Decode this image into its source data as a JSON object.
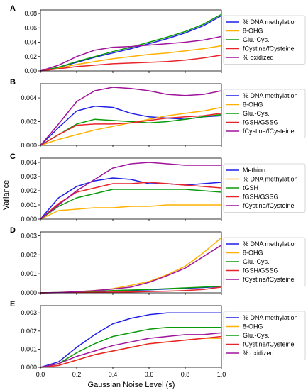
{
  "ylabel": "Variance",
  "xlabel": "Gaussian Noise Level (s)",
  "colors": {
    "blue": "#1f1fe6",
    "orange": "#ffb000",
    "green": "#0a9b0a",
    "red": "#e8242b",
    "purple": "#a0149b"
  },
  "chart_data": [
    {
      "type": "line",
      "panel": "A",
      "x": [
        0,
        0.1,
        0.2,
        0.3,
        0.4,
        0.5,
        0.6,
        0.7,
        0.8,
        0.9,
        1.0
      ],
      "xlim": [
        0,
        1.0
      ],
      "ylim": [
        0,
        0.085
      ],
      "yticks": [
        0,
        0.02,
        0.04,
        0.06,
        0.08
      ],
      "ytick_labels": [
        "0.00",
        "0.02",
        "0.04",
        "0.06",
        "0.08"
      ],
      "legend_position": "right",
      "series": [
        {
          "name": "% DNA methylation",
          "color": "blue",
          "values": [
            0,
            0.005,
            0.012,
            0.019,
            0.025,
            0.031,
            0.038,
            0.045,
            0.053,
            0.063,
            0.077
          ]
        },
        {
          "name": "8-OHG",
          "color": "orange",
          "values": [
            0,
            0.004,
            0.009,
            0.013,
            0.017,
            0.02,
            0.023,
            0.025,
            0.028,
            0.031,
            0.035
          ]
        },
        {
          "name": "Glu.-Cys.",
          "color": "green",
          "values": [
            0,
            0.005,
            0.013,
            0.02,
            0.027,
            0.033,
            0.04,
            0.047,
            0.055,
            0.065,
            0.079
          ]
        },
        {
          "name": "fCystine/fCysteine",
          "color": "red",
          "values": [
            0,
            0.003,
            0.006,
            0.008,
            0.01,
            0.011,
            0.012,
            0.013,
            0.015,
            0.018,
            0.022
          ]
        },
        {
          "name": "% oxidized",
          "color": "purple",
          "values": [
            0,
            0.008,
            0.02,
            0.029,
            0.033,
            0.034,
            0.036,
            0.038,
            0.04,
            0.043,
            0.048
          ]
        }
      ]
    },
    {
      "type": "line",
      "panel": "B",
      "x": [
        0,
        0.1,
        0.2,
        0.3,
        0.4,
        0.5,
        0.6,
        0.7,
        0.8,
        0.9,
        1.0
      ],
      "xlim": [
        0,
        1.0
      ],
      "ylim": [
        0,
        0.0052
      ],
      "yticks": [
        0,
        0.002,
        0.004
      ],
      "ytick_labels": [
        "0.000",
        "0.002",
        "0.004"
      ],
      "legend_position": "right",
      "series": [
        {
          "name": "% DNA methylation",
          "color": "blue",
          "values": [
            0,
            0.0015,
            0.0029,
            0.0033,
            0.0032,
            0.0027,
            0.0024,
            0.0023,
            0.0022,
            0.0024,
            0.0025
          ]
        },
        {
          "name": "8-OHG",
          "color": "orange",
          "values": [
            0,
            0.0005,
            0.0009,
            0.0013,
            0.0016,
            0.0019,
            0.0022,
            0.0025,
            0.0027,
            0.0029,
            0.0032
          ]
        },
        {
          "name": "Glu.-Cys.",
          "color": "green",
          "values": [
            0,
            0.0009,
            0.0018,
            0.0022,
            0.0021,
            0.002,
            0.0019,
            0.002,
            0.0022,
            0.0024,
            0.0026
          ]
        },
        {
          "name": "fGSH/GSSG",
          "color": "red",
          "values": [
            0,
            0.0009,
            0.0017,
            0.0018,
            0.0018,
            0.0019,
            0.0021,
            0.0023,
            0.0024,
            0.0025,
            0.0027
          ]
        },
        {
          "name": "fCystine/fCysteine",
          "color": "purple",
          "values": [
            0,
            0.0018,
            0.0037,
            0.0046,
            0.0049,
            0.0048,
            0.0046,
            0.0043,
            0.0042,
            0.0043,
            0.0046
          ]
        }
      ]
    },
    {
      "type": "line",
      "panel": "C",
      "x": [
        0,
        0.1,
        0.2,
        0.3,
        0.4,
        0.5,
        0.6,
        0.7,
        0.8,
        0.9,
        1.0
      ],
      "xlim": [
        0,
        1.0
      ],
      "ylim": [
        0,
        0.0043
      ],
      "yticks": [
        0,
        0.001,
        0.002,
        0.003,
        0.004
      ],
      "ytick_labels": [
        "0.000",
        "0.001",
        "0.002",
        "0.003",
        "0.004"
      ],
      "legend_position": "right",
      "series": [
        {
          "name": "Methion.",
          "color": "blue",
          "values": [
            0,
            0.0015,
            0.0023,
            0.0027,
            0.0029,
            0.0028,
            0.0025,
            0.0025,
            0.0024,
            0.0025,
            0.0026
          ]
        },
        {
          "name": "% DNA methylation",
          "color": "orange",
          "values": [
            0,
            0.0006,
            0.0007,
            0.0008,
            0.0008,
            0.0009,
            0.0009,
            0.001,
            0.001,
            0.001,
            0.001
          ]
        },
        {
          "name": "tGSH",
          "color": "green",
          "values": [
            0,
            0.0009,
            0.0015,
            0.0018,
            0.0021,
            0.0021,
            0.0021,
            0.0021,
            0.0021,
            0.002,
            0.0019
          ]
        },
        {
          "name": "fGSH/GSSG",
          "color": "red",
          "values": [
            0,
            0.0011,
            0.0019,
            0.0022,
            0.0025,
            0.0025,
            0.0026,
            0.0025,
            0.0024,
            0.0023,
            0.0022
          ]
        },
        {
          "name": "fCystine/fCysteine",
          "color": "purple",
          "values": [
            0,
            0.001,
            0.002,
            0.0028,
            0.0036,
            0.0039,
            0.004,
            0.0039,
            0.0038,
            0.0038,
            0.0038
          ]
        }
      ]
    },
    {
      "type": "line",
      "panel": "D",
      "x": [
        0,
        0.1,
        0.2,
        0.3,
        0.4,
        0.5,
        0.6,
        0.7,
        0.8,
        0.9,
        1.0
      ],
      "xlim": [
        0,
        1.0
      ],
      "ylim": [
        0,
        0.0032
      ],
      "yticks": [
        0,
        0.001,
        0.002,
        0.003
      ],
      "ytick_labels": [
        "0.000",
        "0.001",
        "0.002",
        "0.003"
      ],
      "legend_position": "right",
      "series": [
        {
          "name": "% DNA methylation",
          "color": "blue",
          "values": [
            0,
            1e-05,
            3e-05,
            6e-05,
            0.0001,
            0.00013,
            0.00016,
            0.0002,
            0.00024,
            0.00028,
            0.00033
          ]
        },
        {
          "name": "8-OHG",
          "color": "orange",
          "values": [
            0,
            2e-05,
            6e-05,
            0.00012,
            0.00022,
            0.0004,
            0.0006,
            0.00095,
            0.0014,
            0.0021,
            0.0029
          ]
        },
        {
          "name": "Glu.-Cys.",
          "color": "green",
          "values": [
            0,
            2e-05,
            5e-05,
            8e-05,
            0.00012,
            0.00015,
            0.00018,
            0.00022,
            0.00026,
            0.0003,
            0.00035
          ]
        },
        {
          "name": "fGSH/GSSG",
          "color": "red",
          "values": [
            0,
            1e-05,
            2e-05,
            3e-05,
            4e-05,
            5e-05,
            7e-05,
            9e-05,
            0.00012,
            0.00018,
            0.0003
          ]
        },
        {
          "name": "fCystine/fCysteine",
          "color": "purple",
          "values": [
            0,
            2e-05,
            6e-05,
            0.00012,
            0.0002,
            0.0003,
            0.00055,
            0.0009,
            0.0013,
            0.0019,
            0.0025
          ]
        }
      ]
    },
    {
      "type": "line",
      "panel": "E",
      "x": [
        0,
        0.1,
        0.2,
        0.3,
        0.4,
        0.5,
        0.6,
        0.7,
        0.8,
        0.9,
        1.0
      ],
      "xlim": [
        0,
        1.0
      ],
      "ylim": [
        0,
        0.0034
      ],
      "yticks": [
        0,
        0.001,
        0.002,
        0.003
      ],
      "ytick_labels": [
        "0.000",
        "0.001",
        "0.002",
        "0.003"
      ],
      "xticks": [
        0,
        0.2,
        0.4,
        0.6,
        0.8,
        1.0
      ],
      "xtick_labels": [
        "0.0",
        "0.2",
        "0.4",
        "0.6",
        "0.8",
        "1.0"
      ],
      "legend_position": "right",
      "series": [
        {
          "name": "% DNA methylation",
          "color": "blue",
          "values": [
            0,
            0.0003,
            0.0011,
            0.0018,
            0.0024,
            0.0027,
            0.0029,
            0.003,
            0.003,
            0.003,
            0.003
          ]
        },
        {
          "name": "8-OHG",
          "color": "orange",
          "values": [
            0,
            0.0001,
            0.0004,
            0.0007,
            0.0009,
            0.0011,
            0.0013,
            0.0014,
            0.0015,
            0.0016,
            0.0016
          ]
        },
        {
          "name": "Glu.-Cys.",
          "color": "green",
          "values": [
            0,
            0.0002,
            0.0008,
            0.0013,
            0.0017,
            0.0019,
            0.0021,
            0.0022,
            0.0022,
            0.0022,
            0.0022
          ]
        },
        {
          "name": "fCystine/fCysteine",
          "color": "red",
          "values": [
            0,
            0.0001,
            0.0004,
            0.0007,
            0.0009,
            0.0011,
            0.0013,
            0.0014,
            0.0015,
            0.0016,
            0.0017
          ]
        },
        {
          "name": "% oxidized",
          "color": "purple",
          "values": [
            0,
            0.0002,
            0.0006,
            0.0009,
            0.0012,
            0.0014,
            0.0016,
            0.0017,
            0.0018,
            0.0018,
            0.0019
          ]
        }
      ]
    }
  ]
}
